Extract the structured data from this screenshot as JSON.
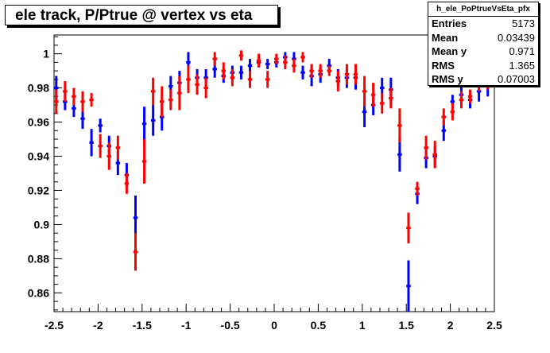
{
  "title": "ele track, P/Ptrue @ vertex vs eta",
  "stats": {
    "name": "h_ele_PoPtrueVsEta_pfx",
    "rows": [
      {
        "label": "Entries",
        "value": "5173"
      },
      {
        "label": "Mean",
        "value": "0.03439"
      },
      {
        "label": "Mean y",
        "value": "0.971"
      },
      {
        "label": "RMS",
        "value": "1.365"
      },
      {
        "label": "RMS y",
        "value": "0.07003"
      }
    ]
  },
  "chart_data": {
    "type": "scatter",
    "xlim": [
      -2.5,
      2.5
    ],
    "ylim": [
      0.849,
      1.011
    ],
    "grid": false,
    "xticks": [
      -2.5,
      -2,
      -1.5,
      -1,
      -0.5,
      0,
      0.5,
      1,
      1.5,
      2,
      2.5
    ],
    "xtick_labels": [
      "-2.5",
      "-2",
      "-1.5",
      "-1",
      "-0.5",
      "0",
      "0.5",
      "1",
      "1.5",
      "2",
      "2.5"
    ],
    "yticks": [
      0.86,
      0.88,
      0.9,
      0.92,
      0.94,
      0.96,
      0.98,
      1.0
    ],
    "ytick_labels": [
      "0.86",
      "0.88",
      "0.9",
      "0.92",
      "0.94",
      "0.96",
      "0.98",
      "1"
    ],
    "bin_half_width": 0.025,
    "series": [
      {
        "color": "#0000ff",
        "x": [
          -2.475,
          -2.375,
          -2.275,
          -2.175,
          -2.075,
          -1.975,
          -1.875,
          -1.775,
          -1.675,
          -1.575,
          -1.475,
          -1.375,
          -1.275,
          -1.175,
          -1.075,
          -0.975,
          -0.875,
          -0.775,
          -0.675,
          -0.575,
          -0.475,
          -0.375,
          -0.275,
          -0.175,
          -0.075,
          0.025,
          0.125,
          0.225,
          0.325,
          0.425,
          0.525,
          0.625,
          0.725,
          0.825,
          0.925,
          1.025,
          1.125,
          1.225,
          1.325,
          1.425,
          1.525,
          1.625,
          1.725,
          1.825,
          1.925,
          2.025,
          2.125,
          2.225,
          2.325,
          2.425
        ],
        "y": [
          0.98,
          0.972,
          0.968,
          0.962,
          0.948,
          0.958,
          0.946,
          0.936,
          0.929,
          0.904,
          0.959,
          0.961,
          0.963,
          0.981,
          0.983,
          0.995,
          0.986,
          0.986,
          0.991,
          0.987,
          0.989,
          0.989,
          0.993,
          0.995,
          0.994,
          0.995,
          0.998,
          0.997,
          0.989,
          0.987,
          0.988,
          0.993,
          0.986,
          0.986,
          0.986,
          0.966,
          0.97,
          0.98,
          0.979,
          0.941,
          0.864,
          0.918,
          0.939,
          0.94,
          0.955,
          0.972,
          0.976,
          0.973,
          0.978,
          0.982
        ],
        "err": [
          0.007,
          0.005,
          0.005,
          0.006,
          0.008,
          0.004,
          0.006,
          0.007,
          0.007,
          0.013,
          0.01,
          0.009,
          0.008,
          0.006,
          0.007,
          0.006,
          0.005,
          0.005,
          0.005,
          0.004,
          0.004,
          0.004,
          0.004,
          0.003,
          0.003,
          0.003,
          0.003,
          0.004,
          0.004,
          0.006,
          0.005,
          0.004,
          0.005,
          0.006,
          0.007,
          0.009,
          0.006,
          0.006,
          0.007,
          0.01,
          0.015,
          0.006,
          0.006,
          0.006,
          0.006,
          0.004,
          0.005,
          0.005,
          0.006,
          0.007
        ]
      },
      {
        "color": "#ff0000",
        "x": [
          -2.475,
          -2.375,
          -2.275,
          -2.175,
          -2.075,
          -1.975,
          -1.875,
          -1.775,
          -1.675,
          -1.575,
          -1.475,
          -1.375,
          -1.275,
          -1.175,
          -1.075,
          -0.975,
          -0.875,
          -0.775,
          -0.675,
          -0.575,
          -0.475,
          -0.375,
          -0.275,
          -0.175,
          -0.075,
          0.025,
          0.125,
          0.225,
          0.325,
          0.425,
          0.525,
          0.625,
          0.725,
          0.825,
          0.925,
          1.025,
          1.125,
          1.225,
          1.325,
          1.425,
          1.525,
          1.625,
          1.725,
          1.825,
          1.925,
          2.025,
          2.125,
          2.225,
          2.325,
          2.425
        ],
        "y": [
          0.972,
          0.978,
          0.975,
          0.972,
          0.973,
          0.946,
          0.94,
          0.945,
          0.924,
          0.884,
          0.937,
          0.978,
          0.972,
          0.973,
          0.977,
          0.985,
          0.982,
          0.98,
          0.997,
          0.99,
          0.986,
          0.999,
          0.985,
          0.996,
          0.985,
          0.997,
          0.995,
          0.993,
          0.998,
          0.99,
          0.99,
          0.99,
          0.984,
          0.988,
          0.988,
          0.978,
          0.976,
          0.971,
          0.974,
          0.958,
          0.898,
          0.921,
          0.945,
          0.941,
          0.963,
          0.966,
          0.973,
          0.975,
          0.983,
          0.985
        ],
        "err": [
          0.007,
          0.006,
          0.005,
          0.006,
          0.004,
          0.007,
          0.008,
          0.007,
          0.006,
          0.011,
          0.013,
          0.008,
          0.009,
          0.006,
          0.01,
          0.008,
          0.006,
          0.006,
          0.004,
          0.005,
          0.005,
          0.003,
          0.005,
          0.004,
          0.005,
          0.003,
          0.004,
          0.004,
          0.003,
          0.004,
          0.004,
          0.003,
          0.006,
          0.006,
          0.006,
          0.009,
          0.007,
          0.006,
          0.006,
          0.01,
          0.009,
          0.004,
          0.007,
          0.008,
          0.005,
          0.005,
          0.005,
          0.004,
          0.005,
          0.006
        ]
      }
    ]
  }
}
